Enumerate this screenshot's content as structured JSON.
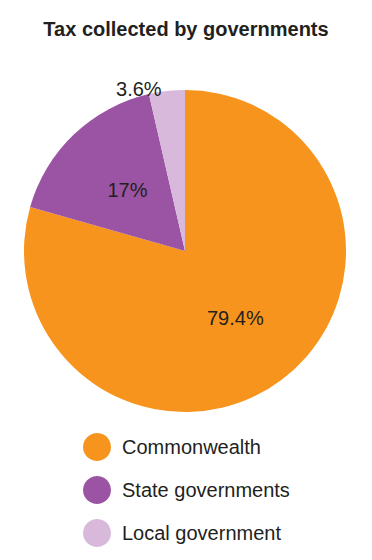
{
  "chart_data": {
    "type": "pie",
    "title": "Tax collected by governments",
    "categories": [
      "Commonwealth",
      "State governments",
      "Local government"
    ],
    "values": [
      79.4,
      17,
      3.6
    ],
    "value_labels": [
      "79.4%",
      "17%",
      "3.6%"
    ],
    "colors": [
      "#F7941D",
      "#9B54A3",
      "#D8B9DB"
    ],
    "data_labels": true,
    "legend": "bottom"
  }
}
